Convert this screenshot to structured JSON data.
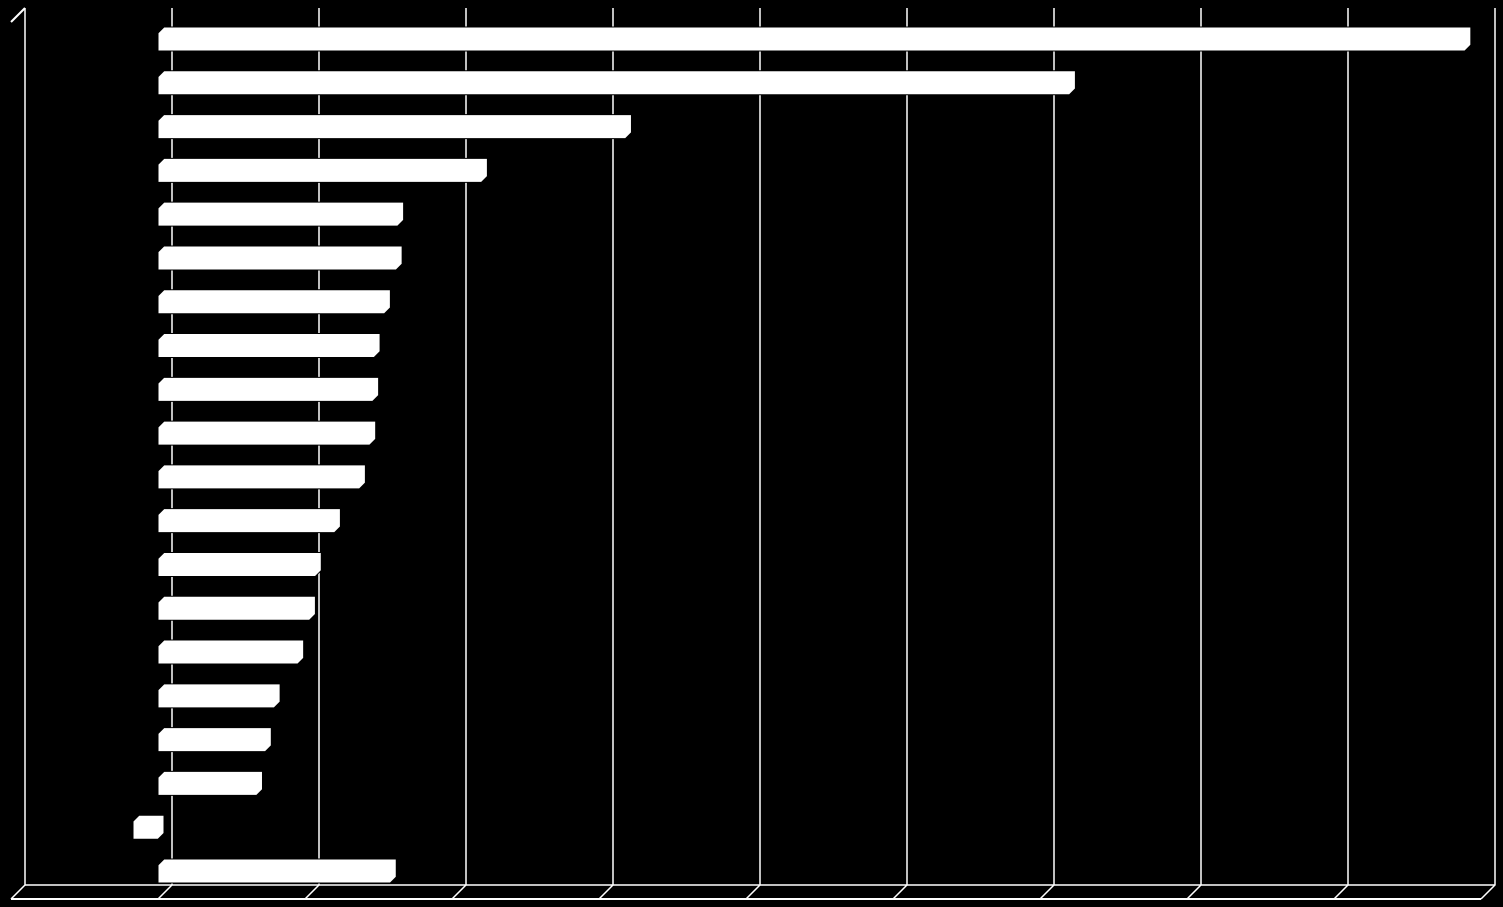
{
  "chart_data": {
    "type": "bar",
    "orientation": "horizontal",
    "categories": [
      null,
      null,
      null,
      null,
      null,
      null,
      null,
      null,
      null,
      null,
      null,
      null,
      null,
      null,
      null,
      null,
      null,
      null,
      null,
      null
    ],
    "values": [
      8.89,
      6.2,
      3.18,
      2.2,
      1.63,
      1.62,
      1.54,
      1.47,
      1.46,
      1.44,
      1.37,
      1.2,
      1.07,
      1.03,
      0.95,
      0.79,
      0.73,
      0.67,
      -0.17,
      1.58
    ],
    "color": "#ffffff",
    "xlim": [
      -1,
      9
    ],
    "xticks": [
      -1,
      0,
      1,
      2,
      3,
      4,
      5,
      6,
      7,
      8,
      9
    ],
    "grid": true
  }
}
